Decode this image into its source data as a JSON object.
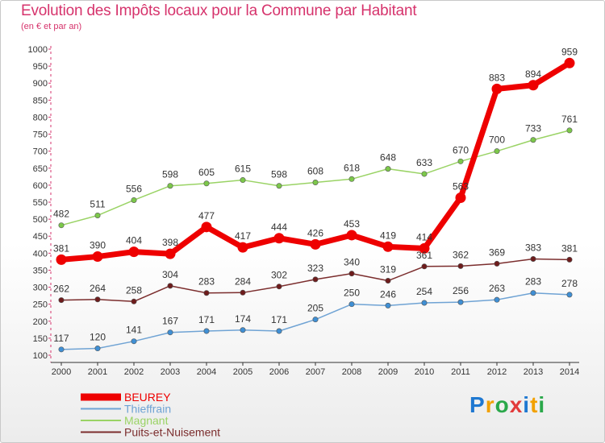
{
  "title": "Evolution des Impôts locaux pour la Commune par Habitant",
  "subtitle": "(en € et par an)",
  "logo_text": "Proxiti",
  "chart_data": {
    "type": "line",
    "title": "Evolution des Impôts locaux pour la Commune par Habitant",
    "subtitle": "(en € et par an)",
    "xlabel": "",
    "ylabel": "",
    "ylim": [
      100,
      1000
    ],
    "yticks": [
      100,
      150,
      200,
      250,
      300,
      350,
      400,
      450,
      500,
      550,
      600,
      650,
      700,
      750,
      800,
      850,
      900,
      950,
      1000
    ],
    "grid": false,
    "legend_position": "bottom-left",
    "x": [
      "2000",
      "2001",
      "2002",
      "2003",
      "2004",
      "2005",
      "2006",
      "2007",
      "2008",
      "2009",
      "2010",
      "2011",
      "2012",
      "2013",
      "2014"
    ],
    "series": [
      {
        "name": "Magnant",
        "color": "#9ad365",
        "markerColor": "#7cc84a",
        "strokeWidth": 1.5,
        "markerRadius": 3.2,
        "values": [
          482,
          511,
          556,
          598,
          605,
          615,
          598,
          608,
          618,
          648,
          633,
          670,
          700,
          733,
          761
        ]
      },
      {
        "name": "Puits-et-Nuisement",
        "color": "#7b2d2d",
        "markerColor": "#6e1c1c",
        "strokeWidth": 1.5,
        "markerRadius": 3.2,
        "values": [
          262,
          264,
          258,
          304,
          283,
          284,
          302,
          323,
          340,
          319,
          361,
          362,
          369,
          383,
          381
        ]
      },
      {
        "name": "Thieffrain",
        "color": "#6fa3d4",
        "markerColor": "#3f8fd4",
        "strokeWidth": 1.5,
        "markerRadius": 3.2,
        "values": [
          117,
          120,
          141,
          167,
          171,
          174,
          171,
          205,
          250,
          246,
          254,
          256,
          263,
          283,
          278
        ]
      },
      {
        "name": "BEUREY",
        "color": "#ee0000",
        "markerColor": "#ee0000",
        "strokeWidth": 7,
        "markerRadius": 6.5,
        "values": [
          381,
          390,
          404,
          398,
          477,
          417,
          444,
          426,
          453,
          419,
          414,
          563,
          883,
          894,
          959
        ]
      }
    ],
    "legend_order": [
      "BEUREY",
      "Thieffrain",
      "Magnant",
      "Puits-et-Nuisement"
    ]
  }
}
